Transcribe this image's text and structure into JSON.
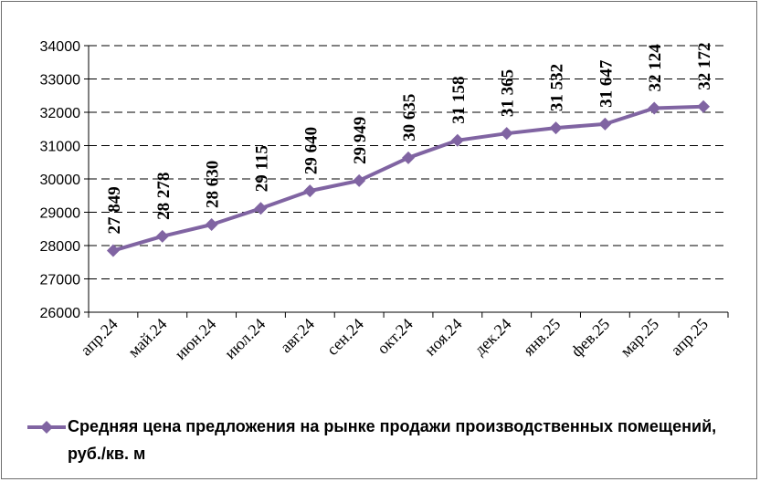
{
  "chart_data": {
    "type": "line",
    "categories": [
      "апр.24",
      "май.24",
      "июн.24",
      "июл.24",
      "авг.24",
      "сен.24",
      "окт.24",
      "ноя.24",
      "дек.24",
      "янв.25",
      "фев.25",
      "мар.25",
      "апр.25"
    ],
    "series": [
      {
        "name": "Средняя цена предложения на рынке продажи  производственных помещений,  руб./кв. м",
        "values": [
          27849,
          28278,
          28630,
          29115,
          29640,
          29949,
          30635,
          31158,
          31365,
          31532,
          31647,
          32124,
          32172
        ],
        "data_labels": [
          "27 849",
          "28 278",
          "28 630",
          "29 115",
          "29 640",
          "29 949",
          "30 635",
          "31 158",
          "31 365",
          "31 532",
          "31 647",
          "32 124",
          "32 172"
        ],
        "color": "#8064a2",
        "marker": "diamond"
      }
    ],
    "y_ticks": [
      "26000",
      "27000",
      "28000",
      "29000",
      "30000",
      "31000",
      "32000",
      "33000",
      "34000"
    ],
    "ylim": [
      26000,
      34000
    ],
    "grid": "horizontal-dashed",
    "legend_position": "bottom",
    "title": "",
    "xlabel": "",
    "ylabel": ""
  }
}
